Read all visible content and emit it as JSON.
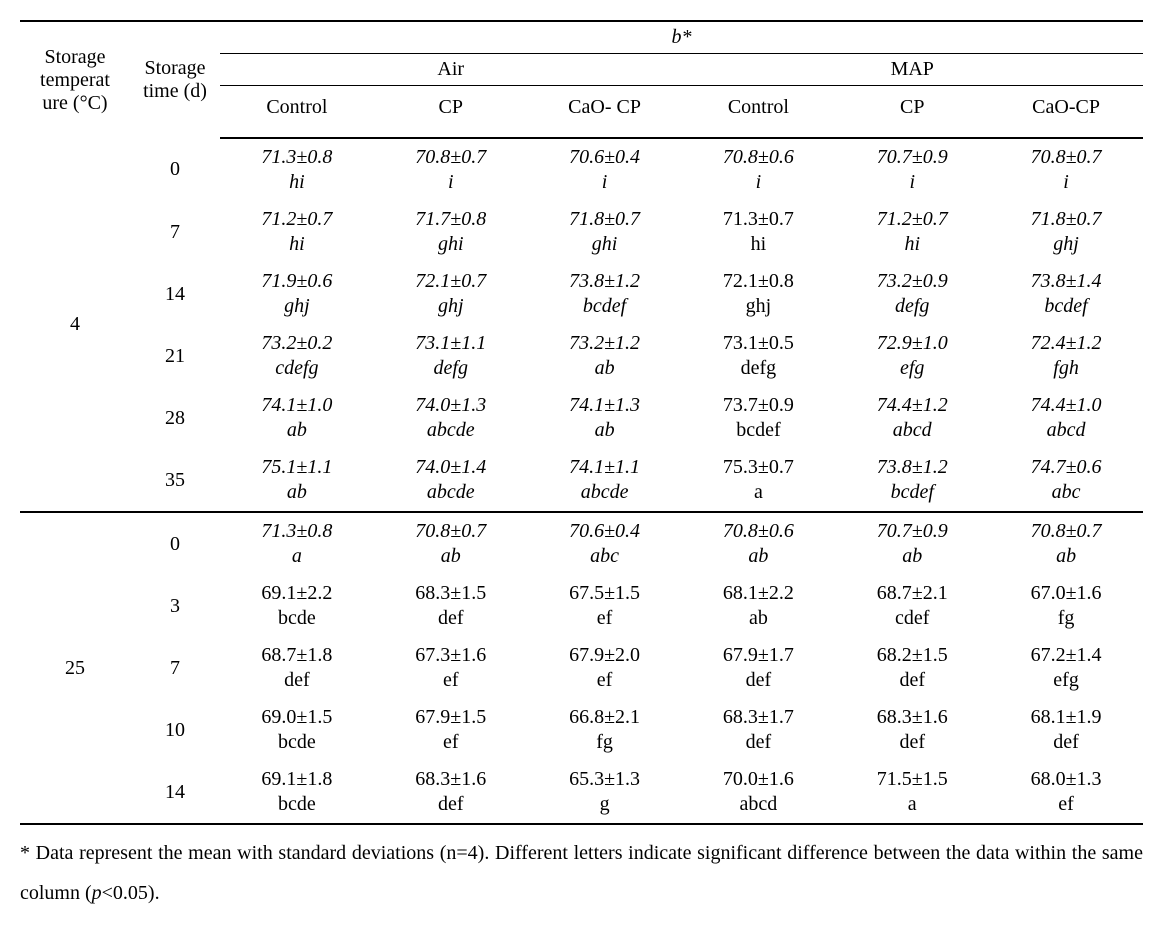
{
  "super_header": "b*",
  "group_air": "Air",
  "group_map": "MAP",
  "col_temp": "Storage temperat ure (°C)",
  "col_time": "Storage time (d)",
  "col_control": "Control",
  "col_cp": "CP",
  "col_cao_cp_air": "CaO- CP",
  "col_cao_cp_map": "CaO-CP",
  "footnote_prefix": "* Data represent the mean with standard deviations (n=4). Different letters indicate significant difference between the data within the same column (",
  "footnote_p": "p",
  "footnote_tail": "<0.05).",
  "blocks": [
    {
      "temp": "4",
      "rows": [
        {
          "time": "0",
          "ital": true,
          "cells": [
            {
              "v": "71.3±0.8",
              "l": "hi"
            },
            {
              "v": "70.8±0.7",
              "l": "i"
            },
            {
              "v": "70.6±0.4",
              "l": "i"
            },
            {
              "v": "70.8±0.6",
              "l": "i"
            },
            {
              "v": "70.7±0.9",
              "l": "i"
            },
            {
              "v": "70.8±0.7",
              "l": "i"
            }
          ]
        },
        {
          "time": "7",
          "ital": true,
          "cells": [
            {
              "v": "71.2±0.7",
              "l": "hi"
            },
            {
              "v": "71.7±0.8",
              "l": "ghi"
            },
            {
              "v": "71.8±0.7",
              "l": "ghi"
            },
            {
              "v": "71.3±0.7",
              "l": "hi",
              "plain": true
            },
            {
              "v": "71.2±0.7",
              "l": "hi"
            },
            {
              "v": "71.8±0.7",
              "l": "ghj"
            }
          ]
        },
        {
          "time": "14",
          "ital": true,
          "cells": [
            {
              "v": "71.9±0.6",
              "l": "ghj"
            },
            {
              "v": "72.1±0.7",
              "l": "ghj"
            },
            {
              "v": "73.8±1.2",
              "l": "bcdef"
            },
            {
              "v": "72.1±0.8",
              "l": "ghj",
              "plain": true
            },
            {
              "v": "73.2±0.9",
              "l": "defg"
            },
            {
              "v": "73.8±1.4",
              "l": "bcdef"
            }
          ]
        },
        {
          "time": "21",
          "ital": true,
          "cells": [
            {
              "v": "73.2±0.2",
              "l": "cdefg"
            },
            {
              "v": "73.1±1.1",
              "l": "defg"
            },
            {
              "v": "73.2±1.2",
              "l": "ab"
            },
            {
              "v": "73.1±0.5",
              "l": "defg",
              "plain": true
            },
            {
              "v": "72.9±1.0",
              "l": "efg"
            },
            {
              "v": "72.4±1.2",
              "l": "fgh"
            }
          ]
        },
        {
          "time": "28",
          "ital": true,
          "cells": [
            {
              "v": "74.1±1.0",
              "l": "ab"
            },
            {
              "v": "74.0±1.3",
              "l": "abcde"
            },
            {
              "v": "74.1±1.3",
              "l": "ab"
            },
            {
              "v": "73.7±0.9",
              "l": "bcdef",
              "plain": true
            },
            {
              "v": "74.4±1.2",
              "l": "abcd"
            },
            {
              "v": "74.4±1.0",
              "l": "abcd"
            }
          ]
        },
        {
          "time": "35",
          "ital": true,
          "cells": [
            {
              "v": "75.1±1.1",
              "l": "ab"
            },
            {
              "v": "74.0±1.4",
              "l": "abcde"
            },
            {
              "v": "74.1±1.1",
              "l": "abcde"
            },
            {
              "v": "75.3±0.7",
              "l": "a",
              "plain": true
            },
            {
              "v": "73.8±1.2",
              "l": "bcdef"
            },
            {
              "v": "74.7±0.6",
              "l": "abc"
            }
          ]
        }
      ]
    },
    {
      "temp": "25",
      "rows": [
        {
          "time": "0",
          "ital": true,
          "cells": [
            {
              "v": "71.3±0.8",
              "l": "a"
            },
            {
              "v": "70.8±0.7",
              "l": "ab"
            },
            {
              "v": "70.6±0.4",
              "l": "abc"
            },
            {
              "v": "70.8±0.6",
              "l": "ab"
            },
            {
              "v": "70.7±0.9",
              "l": "ab"
            },
            {
              "v": "70.8±0.7",
              "l": "ab"
            }
          ]
        },
        {
          "time": "3",
          "ital": false,
          "cells": [
            {
              "v": "69.1±2.2",
              "l": "bcde"
            },
            {
              "v": "68.3±1.5",
              "l": "def"
            },
            {
              "v": "67.5±1.5",
              "l": "ef"
            },
            {
              "v": "68.1±2.2",
              "l": "ab"
            },
            {
              "v": "68.7±2.1",
              "l": "cdef"
            },
            {
              "v": "67.0±1.6",
              "l": "fg"
            }
          ]
        },
        {
          "time": "7",
          "ital": false,
          "cells": [
            {
              "v": "68.7±1.8",
              "l": "def"
            },
            {
              "v": "67.3±1.6",
              "l": "ef"
            },
            {
              "v": "67.9±2.0",
              "l": "ef"
            },
            {
              "v": "67.9±1.7",
              "l": "def"
            },
            {
              "v": "68.2±1.5",
              "l": "def"
            },
            {
              "v": "67.2±1.4",
              "l": "efg"
            }
          ]
        },
        {
          "time": "10",
          "ital": false,
          "cells": [
            {
              "v": "69.0±1.5",
              "l": "bcde"
            },
            {
              "v": "67.9±1.5",
              "l": "ef"
            },
            {
              "v": "66.8±2.1",
              "l": "fg"
            },
            {
              "v": "68.3±1.7",
              "l": "def"
            },
            {
              "v": "68.3±1.6",
              "l": "def"
            },
            {
              "v": "68.1±1.9",
              "l": "def"
            }
          ]
        },
        {
          "time": "14",
          "ital": false,
          "cells": [
            {
              "v": "69.1±1.8",
              "l": "bcde"
            },
            {
              "v": "68.3±1.6",
              "l": "def"
            },
            {
              "v": "65.3±1.3",
              "l": "g"
            },
            {
              "v": "70.0±1.6",
              "l": "abcd"
            },
            {
              "v": "71.5±1.5",
              "l": "a"
            },
            {
              "v": "68.0±1.3",
              "l": "ef"
            }
          ]
        }
      ]
    }
  ]
}
